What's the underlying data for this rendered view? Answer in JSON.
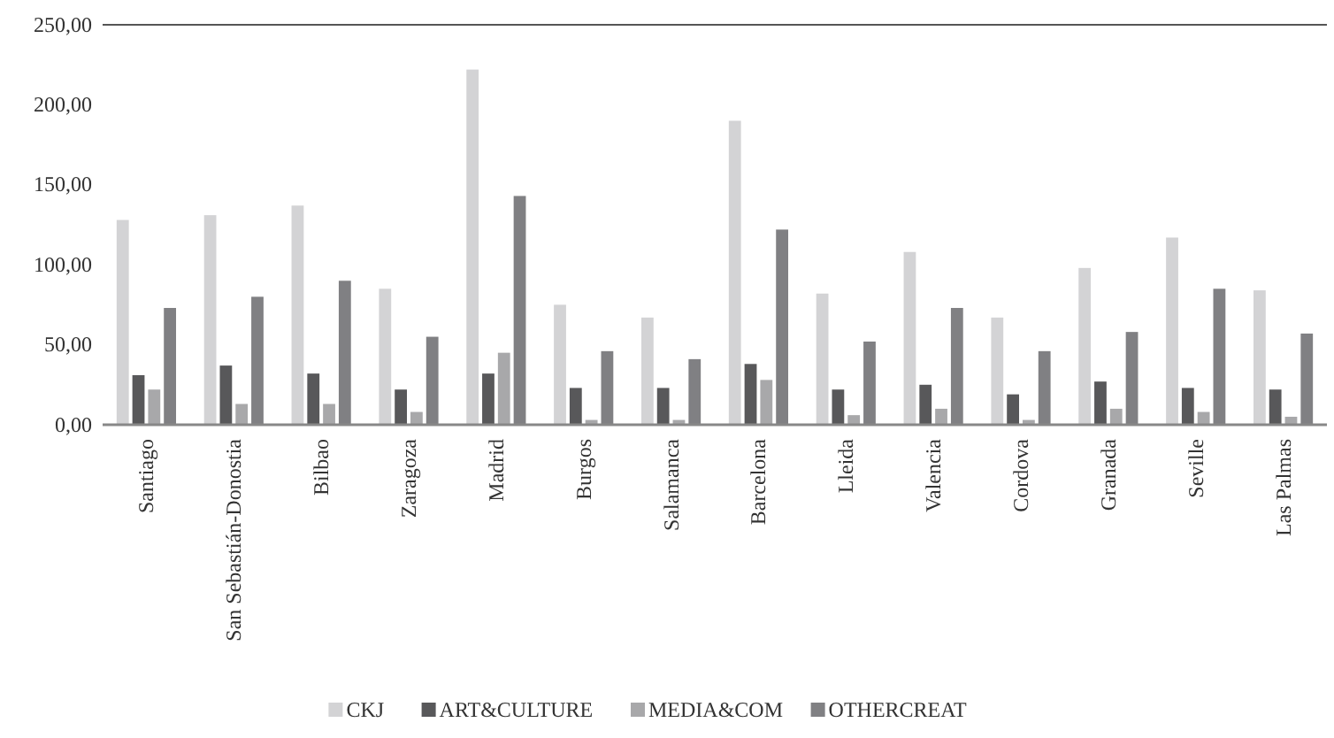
{
  "chart_data": {
    "type": "bar",
    "categories": [
      "Santiago",
      "San Sebastián-Donostia",
      "Bilbao",
      "Zaragoza",
      "Madrid",
      "Burgos",
      "Salamanca",
      "Barcelona",
      "Lleida",
      "Valencia",
      "Cordova",
      "Granada",
      "Seville",
      "Las Palmas"
    ],
    "series": [
      {
        "name": "CKJ",
        "color": "#d3d3d5",
        "values": [
          128,
          131,
          137,
          85,
          222,
          75,
          67,
          190,
          82,
          108,
          67,
          98,
          117,
          84
        ]
      },
      {
        "name": "ART&CULTURE",
        "color": "#58585a",
        "values": [
          31,
          37,
          32,
          22,
          32,
          23,
          23,
          38,
          22,
          25,
          19,
          27,
          23,
          22
        ]
      },
      {
        "name": "MEDIA&COM",
        "color": "#a8a8aa",
        "values": [
          22,
          13,
          13,
          8,
          45,
          3,
          3,
          28,
          6,
          10,
          3,
          10,
          8,
          5
        ]
      },
      {
        "name": "OTHERCREAT",
        "color": "#808083",
        "values": [
          73,
          80,
          90,
          55,
          143,
          46,
          41,
          122,
          52,
          73,
          46,
          58,
          85,
          57
        ]
      }
    ],
    "ylim": [
      0,
      250
    ],
    "yticks": [
      {
        "value": 0,
        "label": "0,00"
      },
      {
        "value": 50,
        "label": "50,00"
      },
      {
        "value": 100,
        "label": "100,00"
      },
      {
        "value": 150,
        "label": "150,00"
      },
      {
        "value": 200,
        "label": "200,00"
      },
      {
        "value": 250,
        "label": "250,00"
      }
    ],
    "legend": "bottom"
  }
}
